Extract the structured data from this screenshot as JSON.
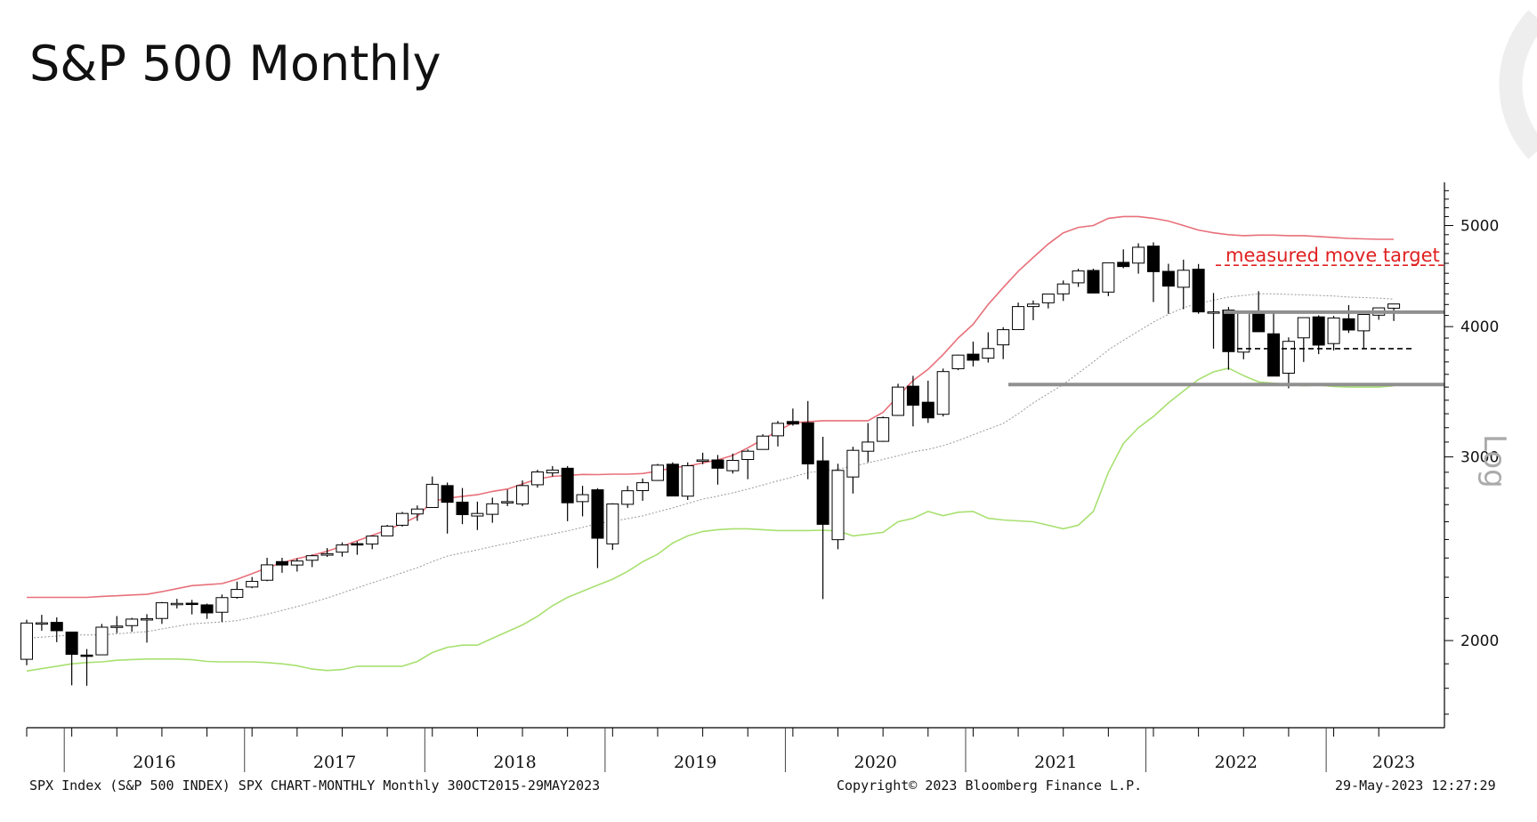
{
  "page": {
    "title": "S&P 500 Monthly"
  },
  "chart_data": {
    "type": "candlestick",
    "title": "S&P 500 Monthly",
    "scale": "log",
    "ylim": [
      1650,
      5500
    ],
    "y_ticks": [
      2000,
      3000,
      4000,
      5000
    ],
    "y_tick_labels": [
      "2000",
      "3000",
      "4000",
      "5000"
    ],
    "year_labels": [
      "2016",
      "2017",
      "2018",
      "2019",
      "2020",
      "2021",
      "2022",
      "2023"
    ],
    "axis_note": "Log",
    "months": [
      "2015-10",
      "2015-11",
      "2015-12",
      "2016-01",
      "2016-02",
      "2016-03",
      "2016-04",
      "2016-05",
      "2016-06",
      "2016-07",
      "2016-08",
      "2016-09",
      "2016-10",
      "2016-11",
      "2016-12",
      "2017-01",
      "2017-02",
      "2017-03",
      "2017-04",
      "2017-05",
      "2017-06",
      "2017-07",
      "2017-08",
      "2017-09",
      "2017-10",
      "2017-11",
      "2017-12",
      "2018-01",
      "2018-02",
      "2018-03",
      "2018-04",
      "2018-05",
      "2018-06",
      "2018-07",
      "2018-08",
      "2018-09",
      "2018-10",
      "2018-11",
      "2018-12",
      "2019-01",
      "2019-02",
      "2019-03",
      "2019-04",
      "2019-05",
      "2019-06",
      "2019-07",
      "2019-08",
      "2019-09",
      "2019-10",
      "2019-11",
      "2019-12",
      "2020-01",
      "2020-02",
      "2020-03",
      "2020-04",
      "2020-05",
      "2020-06",
      "2020-07",
      "2020-08",
      "2020-09",
      "2020-10",
      "2020-11",
      "2020-12",
      "2021-01",
      "2021-02",
      "2021-03",
      "2021-04",
      "2021-05",
      "2021-06",
      "2021-07",
      "2021-08",
      "2021-09",
      "2021-10",
      "2021-11",
      "2021-12",
      "2022-01",
      "2022-02",
      "2022-03",
      "2022-04",
      "2022-05",
      "2022-06",
      "2022-07",
      "2022-08",
      "2022-09",
      "2022-10",
      "2022-11",
      "2022-12",
      "2023-01",
      "2023-02",
      "2023-03",
      "2023-04",
      "2023-05"
    ],
    "open": [
      1919,
      2080,
      2082,
      2038,
      1937,
      1938,
      2060,
      2067,
      2097,
      2100,
      2171,
      2172,
      2164,
      2129,
      2200,
      2251,
      2285,
      2381,
      2363,
      2388,
      2415,
      2431,
      2477,
      2475,
      2520,
      2580,
      2645,
      2683,
      2816,
      2715,
      2633,
      2643,
      2718,
      2704,
      2821,
      2896,
      2926,
      2718,
      2790,
      2476,
      2702,
      2785,
      2848,
      2952,
      2751,
      2971,
      2980,
      2910,
      2983,
      3050,
      3143,
      3244,
      3235,
      2974,
      2499,
      2870,
      3038,
      3105,
      3288,
      3507,
      3385,
      3296,
      3645,
      3764,
      3731,
      3842,
      3974,
      4181,
      4216,
      4300,
      4406,
      4528,
      4317,
      4610,
      4602,
      4778,
      4519,
      4363,
      4540,
      4130,
      4149,
      3781,
      4113,
      3937,
      3609,
      3902,
      4087,
      3853,
      4070,
      3963,
      4102,
      4166
    ],
    "high": [
      2094,
      2117,
      2105,
      2038,
      1963,
      2075,
      2111,
      2103,
      2120,
      2178,
      2193,
      2188,
      2170,
      2214,
      2278,
      2301,
      2401,
      2401,
      2398,
      2418,
      2453,
      2484,
      2490,
      2519,
      2582,
      2657,
      2695,
      2873,
      2835,
      2801,
      2718,
      2742,
      2791,
      2848,
      2916,
      2940,
      2940,
      2815,
      2800,
      2708,
      2814,
      2860,
      2954,
      2964,
      2964,
      3028,
      3013,
      3022,
      3050,
      3154,
      3248,
      3338,
      3394,
      3136,
      2955,
      3068,
      3233,
      3280,
      3526,
      3588,
      3550,
      3646,
      3760,
      3870,
      3950,
      3995,
      4218,
      4238,
      4302,
      4429,
      4545,
      4546,
      4608,
      4744,
      4808,
      4818,
      4595,
      4637,
      4593,
      4308,
      4177,
      4141,
      4325,
      4119,
      3906,
      4080,
      4101,
      4095,
      4195,
      4079,
      4169,
      4190
    ],
    "low": [
      1894,
      2044,
      1993,
      1812,
      1810,
      1937,
      2033,
      2039,
      1991,
      2075,
      2147,
      2119,
      2098,
      2084,
      2194,
      2245,
      2280,
      2323,
      2329,
      2352,
      2406,
      2407,
      2417,
      2447,
      2520,
      2572,
      2605,
      2682,
      2533,
      2586,
      2553,
      2594,
      2691,
      2691,
      2803,
      2873,
      2603,
      2631,
      2347,
      2443,
      2681,
      2723,
      2848,
      2751,
      2728,
      2952,
      2822,
      2892,
      2856,
      3051,
      3070,
      3214,
      2856,
      2192,
      2447,
      2767,
      2965,
      3101,
      3284,
      3209,
      3234,
      3280,
      3633,
      3663,
      3695,
      3723,
      3974,
      4057,
      4164,
      4233,
      4367,
      4306,
      4278,
      4550,
      4496,
      4223,
      4115,
      4157,
      4115,
      3810,
      3636,
      3722,
      3954,
      3584,
      3491,
      3700,
      3764,
      3795,
      3944,
      3808,
      4061,
      4050
    ],
    "close": [
      2079,
      2080,
      2044,
      1940,
      1932,
      2060,
      2065,
      2097,
      2099,
      2174,
      2171,
      2168,
      2126,
      2199,
      2239,
      2279,
      2364,
      2363,
      2384,
      2412,
      2423,
      2470,
      2472,
      2519,
      2575,
      2648,
      2674,
      2824,
      2714,
      2641,
      2648,
      2705,
      2718,
      2816,
      2902,
      2914,
      2711,
      2760,
      2507,
      2704,
      2784,
      2834,
      2946,
      2752,
      2942,
      2980,
      2926,
      2977,
      3038,
      3141,
      3231,
      3226,
      2954,
      2585,
      2912,
      3044,
      3100,
      3271,
      3500,
      3363,
      3270,
      3622,
      3756,
      3714,
      3811,
      3973,
      4181,
      4204,
      4298,
      4395,
      4523,
      4308,
      4605,
      4567,
      4766,
      4516,
      4374,
      4530,
      4132,
      4132,
      3785,
      4130,
      3955,
      3586,
      3872,
      4080,
      3840,
      4077,
      3970,
      4109,
      4169,
      4205
    ],
    "series": [
      {
        "name": "Upper band",
        "color": "#e8707a",
        "values": [
          2200,
          2200,
          2200,
          2200,
          2200,
          2205,
          2208,
          2212,
          2215,
          2228,
          2243,
          2258,
          2263,
          2268,
          2290,
          2318,
          2349,
          2375,
          2397,
          2414,
          2436,
          2463,
          2493,
          2523,
          2553,
          2590,
          2630,
          2720,
          2738,
          2750,
          2760,
          2780,
          2795,
          2826,
          2857,
          2874,
          2880,
          2886,
          2885,
          2888,
          2888,
          2892,
          2907,
          2929,
          2940,
          2960,
          2980,
          3010,
          3060,
          3118,
          3177,
          3234,
          3242,
          3250,
          3250,
          3250,
          3250,
          3310,
          3430,
          3550,
          3640,
          3760,
          3900,
          4020,
          4200,
          4360,
          4520,
          4660,
          4800,
          4920,
          4980,
          5000,
          5080,
          5100,
          5100,
          5080,
          5050,
          5000,
          4950,
          4920,
          4900,
          4890,
          4895,
          4895,
          4890,
          4890,
          4880,
          4870,
          4860,
          4855,
          4850,
          4850
        ]
      },
      {
        "name": "Mid band",
        "color": "#999999",
        "values": [
          2010,
          2015,
          2020,
          2025,
          2025,
          2025,
          2030,
          2035,
          2040,
          2052,
          2064,
          2075,
          2080,
          2084,
          2090,
          2104,
          2120,
          2138,
          2156,
          2175,
          2197,
          2222,
          2247,
          2272,
          2297,
          2323,
          2349,
          2381,
          2410,
          2427,
          2443,
          2462,
          2478,
          2496,
          2514,
          2531,
          2548,
          2568,
          2589,
          2603,
          2618,
          2634,
          2657,
          2680,
          2707,
          2733,
          2751,
          2771,
          2794,
          2820,
          2845,
          2870,
          2898,
          2908,
          2920,
          2940,
          2960,
          2983,
          3008,
          3034,
          3050,
          3075,
          3110,
          3150,
          3190,
          3230,
          3300,
          3380,
          3450,
          3520,
          3610,
          3700,
          3800,
          3880,
          3960,
          4040,
          4110,
          4170,
          4210,
          4240,
          4270,
          4285,
          4300,
          4300,
          4295,
          4290,
          4285,
          4280,
          4270,
          4265,
          4260,
          4250
        ]
      },
      {
        "name": "Lower band",
        "color": "#a8e070",
        "values": [
          1870,
          1880,
          1890,
          1900,
          1905,
          1908,
          1915,
          1918,
          1920,
          1920,
          1920,
          1917,
          1910,
          1908,
          1908,
          1908,
          1905,
          1900,
          1892,
          1878,
          1872,
          1876,
          1890,
          1890,
          1890,
          1890,
          1910,
          1948,
          1970,
          1980,
          1980,
          2010,
          2040,
          2070,
          2110,
          2160,
          2200,
          2230,
          2260,
          2290,
          2330,
          2380,
          2420,
          2480,
          2520,
          2545,
          2555,
          2560,
          2560,
          2555,
          2550,
          2550,
          2550,
          2552,
          2548,
          2520,
          2530,
          2540,
          2600,
          2620,
          2660,
          2635,
          2655,
          2660,
          2620,
          2610,
          2605,
          2600,
          2580,
          2560,
          2580,
          2660,
          2900,
          3090,
          3200,
          3280,
          3380,
          3470,
          3560,
          3620,
          3650,
          3590,
          3540,
          3530,
          3520,
          3510,
          3515,
          3505,
          3500,
          3500,
          3500,
          3510
        ]
      }
    ],
    "levels": [
      {
        "name": "Measured move target",
        "value": 4580,
        "color": "#e02020",
        "style": "dashed"
      },
      {
        "name": "Resistance line",
        "value": 4130,
        "color": "#909090",
        "style": "solid"
      },
      {
        "name": "Mid dashed line",
        "value": 3810,
        "color": "#000000",
        "style": "dashed"
      },
      {
        "name": "Support line",
        "value": 3520,
        "color": "#909090",
        "style": "solid"
      }
    ],
    "annotations": [
      {
        "text": "measured move target",
        "color": "#e02020"
      }
    ]
  },
  "footer": {
    "left": "SPX Index (S&P 500 INDEX) SPX CHART-MONTHLY  Monthly 30OCT2015-29MAY2023",
    "center": "Copyright© 2023 Bloomberg Finance L.P.",
    "right": "29-May-2023 12:27:29"
  }
}
